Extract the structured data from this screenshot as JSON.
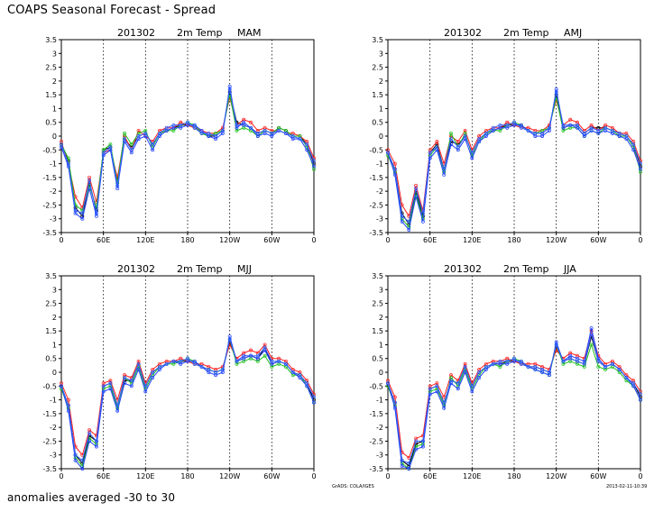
{
  "page": {
    "title": "COAPS Seasonal Forecast - Spread",
    "footer": "anomalies averaged -30 to 30",
    "credit": "GrADS: COLA/IGES",
    "timestamp": "2013-02-11-10:39"
  },
  "styles": {
    "member_colors": [
      "#000000",
      "#ff2020",
      "#20c020",
      "#2040ff",
      "#3060ff"
    ],
    "grid_color": "#000000"
  },
  "chart_data": [
    {
      "type": "line",
      "title": "201302",
      "variable": "2m Temp",
      "season": "MAM",
      "x": [
        0,
        10,
        20,
        30,
        40,
        50,
        60,
        70,
        80,
        90,
        100,
        110,
        120,
        130,
        140,
        150,
        160,
        170,
        180,
        190,
        200,
        210,
        220,
        230,
        240,
        250,
        260,
        270,
        280,
        290,
        300,
        310,
        320,
        330,
        340,
        350,
        360
      ],
      "xticks": [
        "0",
        "60E",
        "120E",
        "180",
        "120W",
        "60W",
        "0"
      ],
      "xtick_values": [
        0,
        60,
        120,
        180,
        240,
        300,
        360
      ],
      "ylim": [
        -3.5,
        3.5
      ],
      "yticks": [
        "-3.5",
        "-3",
        "-2.5",
        "-2",
        "-1.5",
        "-1",
        "-0.5",
        "0",
        "0.5",
        "1",
        "1.5",
        "2",
        "2.5",
        "3",
        "3.5"
      ],
      "series": [
        {
          "values": [
            -0.3,
            -0.9,
            -2.6,
            -2.9,
            -1.7,
            -2.7,
            -0.5,
            -0.4,
            -1.6,
            -0.1,
            -0.4,
            0.0,
            0.1,
            -0.3,
            0.1,
            0.2,
            0.3,
            0.4,
            0.4,
            0.3,
            0.1,
            0.0,
            0.0,
            0.2,
            1.6,
            0.5,
            0.4,
            0.3,
            0.1,
            0.2,
            0.1,
            0.3,
            0.2,
            0.0,
            0.0,
            -0.3,
            -1.0
          ]
        },
        {
          "values": [
            -0.2,
            -1.0,
            -2.2,
            -2.6,
            -1.5,
            -2.4,
            -0.6,
            -0.5,
            -1.5,
            0.0,
            -0.5,
            0.2,
            0.0,
            -0.2,
            0.2,
            0.3,
            0.3,
            0.5,
            0.4,
            0.3,
            0.2,
            0.1,
            0.1,
            0.3,
            1.4,
            0.4,
            0.6,
            0.5,
            0.2,
            0.3,
            0.2,
            0.2,
            0.1,
            0.1,
            0.0,
            -0.2,
            -0.8
          ]
        },
        {
          "values": [
            -0.3,
            -0.8,
            -2.5,
            -2.7,
            -1.8,
            -2.6,
            -0.5,
            -0.3,
            -1.7,
            0.1,
            -0.3,
            0.1,
            0.2,
            -0.4,
            0.1,
            0.2,
            0.2,
            0.4,
            0.5,
            0.4,
            0.1,
            0.0,
            0.1,
            0.2,
            1.5,
            0.2,
            0.3,
            0.2,
            0.0,
            0.2,
            0.1,
            0.3,
            0.2,
            0.0,
            0.0,
            -0.4,
            -1.2
          ]
        },
        {
          "values": [
            -0.4,
            -1.1,
            -2.8,
            -3.0,
            -1.9,
            -2.9,
            -0.7,
            -0.5,
            -1.9,
            -0.2,
            -0.6,
            -0.1,
            0.0,
            -0.5,
            0.0,
            0.2,
            0.3,
            0.3,
            0.4,
            0.4,
            0.2,
            0.0,
            -0.1,
            0.1,
            1.8,
            0.3,
            0.5,
            0.3,
            0.0,
            0.1,
            0.0,
            0.2,
            0.1,
            -0.1,
            -0.1,
            -0.5,
            -1.1
          ]
        },
        {
          "values": [
            -0.3,
            -1.0,
            -2.7,
            -2.8,
            -1.6,
            -2.8,
            -0.6,
            -0.4,
            -1.8,
            -0.1,
            -0.5,
            0.0,
            0.1,
            -0.3,
            0.1,
            0.3,
            0.4,
            0.4,
            0.5,
            0.3,
            0.1,
            0.1,
            0.0,
            0.2,
            1.7,
            0.4,
            0.4,
            0.3,
            0.1,
            0.2,
            0.1,
            0.2,
            0.1,
            0.0,
            -0.1,
            -0.3,
            -0.9
          ]
        }
      ]
    },
    {
      "type": "line",
      "title": "201302",
      "variable": "2m Temp",
      "season": "AMJ",
      "x": [
        0,
        10,
        20,
        30,
        40,
        50,
        60,
        70,
        80,
        90,
        100,
        110,
        120,
        130,
        140,
        150,
        160,
        170,
        180,
        190,
        200,
        210,
        220,
        230,
        240,
        250,
        260,
        270,
        280,
        290,
        300,
        310,
        320,
        330,
        340,
        350,
        360
      ],
      "xticks": [
        "0",
        "60E",
        "120E",
        "180",
        "120W",
        "60W",
        "0"
      ],
      "xtick_values": [
        0,
        60,
        120,
        180,
        240,
        300,
        360
      ],
      "ylim": [
        -3.5,
        3.5
      ],
      "yticks": [
        "-3.5",
        "-3",
        "-2.5",
        "-2",
        "-1.5",
        "-1",
        "-0.5",
        "0",
        "0.5",
        "1",
        "1.5",
        "2",
        "2.5",
        "3",
        "3.5"
      ],
      "series": [
        {
          "values": [
            -0.6,
            -1.2,
            -2.8,
            -3.2,
            -2.0,
            -2.9,
            -0.6,
            -0.3,
            -1.2,
            -0.2,
            -0.3,
            0.0,
            -0.6,
            -0.1,
            0.1,
            0.2,
            0.3,
            0.4,
            0.4,
            0.4,
            0.2,
            0.1,
            0.1,
            0.3,
            1.5,
            0.3,
            0.4,
            0.4,
            0.1,
            0.3,
            0.3,
            0.3,
            0.2,
            0.1,
            0.0,
            -0.3,
            -1.1
          ]
        },
        {
          "values": [
            -0.5,
            -1.0,
            -2.5,
            -2.9,
            -1.8,
            -2.7,
            -0.5,
            -0.2,
            -1.0,
            0.0,
            -0.2,
            0.2,
            -0.5,
            0.0,
            0.2,
            0.3,
            0.3,
            0.5,
            0.4,
            0.3,
            0.3,
            0.2,
            0.2,
            0.4,
            1.3,
            0.4,
            0.6,
            0.5,
            0.2,
            0.4,
            0.2,
            0.4,
            0.3,
            0.1,
            0.1,
            -0.2,
            -0.9
          ]
        },
        {
          "values": [
            -0.7,
            -1.3,
            -3.0,
            -3.3,
            -2.1,
            -3.0,
            -0.7,
            -0.4,
            -1.3,
            0.1,
            -0.4,
            0.1,
            -0.7,
            -0.2,
            0.1,
            0.2,
            0.2,
            0.4,
            0.5,
            0.4,
            0.2,
            0.1,
            0.2,
            0.3,
            1.4,
            0.2,
            0.3,
            0.3,
            0.0,
            0.2,
            0.1,
            0.3,
            0.2,
            0.0,
            0.0,
            -0.4,
            -1.3
          ]
        },
        {
          "values": [
            -0.6,
            -1.4,
            -3.1,
            -3.4,
            -2.2,
            -3.1,
            -0.8,
            -0.5,
            -1.4,
            -0.3,
            -0.5,
            -0.1,
            -0.8,
            -0.2,
            0.0,
            0.2,
            0.3,
            0.3,
            0.4,
            0.4,
            0.2,
            0.0,
            0.0,
            0.2,
            1.7,
            0.3,
            0.4,
            0.3,
            0.0,
            0.2,
            0.1,
            0.2,
            0.1,
            0.0,
            -0.1,
            -0.5,
            -1.2
          ]
        },
        {
          "values": [
            -0.6,
            -1.2,
            -2.9,
            -3.1,
            -1.9,
            -2.8,
            -0.6,
            -0.4,
            -1.2,
            -0.1,
            -0.4,
            0.0,
            -0.6,
            -0.1,
            0.1,
            0.3,
            0.4,
            0.4,
            0.5,
            0.3,
            0.2,
            0.1,
            0.1,
            0.3,
            1.6,
            0.4,
            0.4,
            0.4,
            0.1,
            0.3,
            0.2,
            0.3,
            0.2,
            0.1,
            0.0,
            -0.3,
            -1.0
          ]
        }
      ]
    },
    {
      "type": "line",
      "title": "201302",
      "variable": "2m Temp",
      "season": "MJJ",
      "x": [
        0,
        10,
        20,
        30,
        40,
        50,
        60,
        70,
        80,
        90,
        100,
        110,
        120,
        130,
        140,
        150,
        160,
        170,
        180,
        190,
        200,
        210,
        220,
        230,
        240,
        250,
        260,
        270,
        280,
        290,
        300,
        310,
        320,
        330,
        340,
        350,
        360
      ],
      "xticks": [
        "0",
        "60E",
        "120E",
        "180",
        "120W",
        "60W",
        "0"
      ],
      "xtick_values": [
        0,
        60,
        120,
        180,
        240,
        300,
        360
      ],
      "ylim": [
        -3.5,
        3.5
      ],
      "yticks": [
        "-3.5",
        "-3",
        "-2.5",
        "-2",
        "-1.5",
        "-1",
        "-0.5",
        "0",
        "0.5",
        "1",
        "1.5",
        "2",
        "2.5",
        "3",
        "3.5"
      ],
      "series": [
        {
          "values": [
            -0.5,
            -1.2,
            -3.0,
            -3.3,
            -2.3,
            -2.5,
            -0.5,
            -0.4,
            -1.2,
            -0.3,
            -0.3,
            0.3,
            -0.5,
            0.0,
            0.2,
            0.3,
            0.4,
            0.4,
            0.4,
            0.3,
            0.2,
            0.1,
            0.0,
            0.1,
            1.1,
            0.4,
            0.5,
            0.6,
            0.5,
            0.9,
            0.3,
            0.4,
            0.3,
            0.0,
            -0.1,
            -0.4,
            -1.0
          ]
        },
        {
          "values": [
            -0.4,
            -1.0,
            -2.7,
            -3.0,
            -2.1,
            -2.3,
            -0.4,
            -0.3,
            -1.0,
            -0.1,
            -0.2,
            0.4,
            -0.4,
            0.1,
            0.3,
            0.4,
            0.4,
            0.5,
            0.4,
            0.3,
            0.3,
            0.2,
            0.1,
            0.2,
            1.0,
            0.5,
            0.7,
            0.8,
            0.7,
            1.0,
            0.5,
            0.5,
            0.4,
            0.1,
            0.0,
            -0.3,
            -0.8
          ]
        },
        {
          "values": [
            -0.6,
            -1.3,
            -3.1,
            -3.4,
            -2.4,
            -2.6,
            -0.6,
            -0.5,
            -1.3,
            -0.2,
            -0.4,
            0.2,
            -0.6,
            -0.1,
            0.2,
            0.3,
            0.3,
            0.4,
            0.5,
            0.4,
            0.2,
            0.1,
            0.0,
            0.1,
            1.2,
            0.3,
            0.4,
            0.5,
            0.4,
            0.6,
            0.2,
            0.3,
            0.2,
            -0.1,
            -0.1,
            -0.5,
            -1.1
          ]
        },
        {
          "values": [
            -0.5,
            -1.4,
            -3.2,
            -3.5,
            -2.5,
            -2.7,
            -0.7,
            -0.6,
            -1.4,
            -0.4,
            -0.5,
            0.1,
            -0.7,
            -0.2,
            0.1,
            0.3,
            0.4,
            0.3,
            0.4,
            0.4,
            0.2,
            0.0,
            -0.1,
            0.0,
            1.3,
            0.4,
            0.6,
            0.6,
            0.5,
            0.8,
            0.3,
            0.4,
            0.3,
            0.0,
            -0.2,
            -0.5,
            -1.1
          ]
        },
        {
          "values": [
            -0.5,
            -1.2,
            -3.0,
            -3.2,
            -2.2,
            -2.5,
            -0.5,
            -0.4,
            -1.2,
            -0.2,
            -0.3,
            0.3,
            -0.5,
            0.0,
            0.2,
            0.3,
            0.4,
            0.4,
            0.5,
            0.3,
            0.2,
            0.1,
            0.0,
            0.1,
            1.2,
            0.4,
            0.5,
            0.6,
            0.6,
            0.9,
            0.4,
            0.4,
            0.3,
            0.0,
            -0.1,
            -0.4,
            -0.9
          ]
        }
      ]
    },
    {
      "type": "line",
      "title": "201302",
      "variable": "2m Temp",
      "season": "JJA",
      "x": [
        0,
        10,
        20,
        30,
        40,
        50,
        60,
        70,
        80,
        90,
        100,
        110,
        120,
        130,
        140,
        150,
        160,
        170,
        180,
        190,
        200,
        210,
        220,
        230,
        240,
        250,
        260,
        270,
        280,
        290,
        300,
        310,
        320,
        330,
        340,
        350,
        360
      ],
      "xticks": [
        "0",
        "60E",
        "120E",
        "180",
        "120W",
        "60W",
        "0"
      ],
      "xtick_values": [
        0,
        60,
        120,
        180,
        240,
        300,
        360
      ],
      "ylim": [
        -3.5,
        3.5
      ],
      "yticks": [
        "-3.5",
        "-3",
        "-2.5",
        "-2",
        "-1.5",
        "-1",
        "-0.5",
        "0",
        "0.5",
        "1",
        "1.5",
        "2",
        "2.5",
        "3",
        "3.5"
      ],
      "series": [
        {
          "values": [
            -0.4,
            -1.1,
            -3.2,
            -3.4,
            -2.6,
            -2.5,
            -0.6,
            -0.5,
            -1.1,
            -0.3,
            -0.4,
            0.2,
            -0.5,
            0.0,
            0.2,
            0.3,
            0.3,
            0.4,
            0.4,
            0.3,
            0.2,
            0.2,
            0.1,
            0.0,
            0.9,
            0.4,
            0.5,
            0.4,
            0.3,
            1.3,
            0.4,
            0.2,
            0.3,
            0.1,
            -0.2,
            -0.4,
            -0.9
          ]
        },
        {
          "values": [
            -0.3,
            -0.9,
            -2.9,
            -3.1,
            -2.4,
            -2.3,
            -0.5,
            -0.4,
            -0.9,
            -0.1,
            -0.3,
            0.3,
            -0.4,
            0.1,
            0.3,
            0.4,
            0.4,
            0.5,
            0.4,
            0.3,
            0.3,
            0.3,
            0.2,
            0.1,
            0.8,
            0.5,
            0.7,
            0.6,
            0.5,
            1.5,
            0.6,
            0.3,
            0.4,
            0.2,
            -0.1,
            -0.3,
            -0.7
          ]
        },
        {
          "values": [
            -0.5,
            -1.2,
            -3.3,
            -3.5,
            -2.7,
            -2.6,
            -0.7,
            -0.6,
            -1.2,
            -0.2,
            -0.5,
            0.1,
            -0.6,
            -0.1,
            0.2,
            0.3,
            0.2,
            0.4,
            0.5,
            0.4,
            0.2,
            0.1,
            0.0,
            -0.1,
            1.0,
            0.3,
            0.4,
            0.3,
            0.2,
            1.0,
            0.2,
            0.1,
            0.2,
            0.0,
            -0.3,
            -0.5,
            -1.0
          ]
        },
        {
          "values": [
            -0.4,
            -1.3,
            -3.4,
            -3.5,
            -2.8,
            -2.7,
            -0.8,
            -0.7,
            -1.3,
            -0.4,
            -0.6,
            0.0,
            -0.7,
            -0.2,
            0.1,
            0.3,
            0.3,
            0.3,
            0.4,
            0.4,
            0.2,
            0.1,
            0.0,
            -0.1,
            1.1,
            0.4,
            0.6,
            0.5,
            0.4,
            1.6,
            0.5,
            0.2,
            0.3,
            0.1,
            -0.2,
            -0.5,
            -1.0
          ]
        },
        {
          "values": [
            -0.4,
            -1.1,
            -3.2,
            -3.3,
            -2.5,
            -2.5,
            -0.6,
            -0.5,
            -1.1,
            -0.3,
            -0.4,
            0.2,
            -0.5,
            0.0,
            0.2,
            0.3,
            0.4,
            0.4,
            0.5,
            0.3,
            0.2,
            0.2,
            0.1,
            0.0,
            1.0,
            0.4,
            0.5,
            0.4,
            0.3,
            1.4,
            0.4,
            0.2,
            0.3,
            0.1,
            -0.2,
            -0.4,
            -0.8
          ]
        }
      ]
    }
  ]
}
